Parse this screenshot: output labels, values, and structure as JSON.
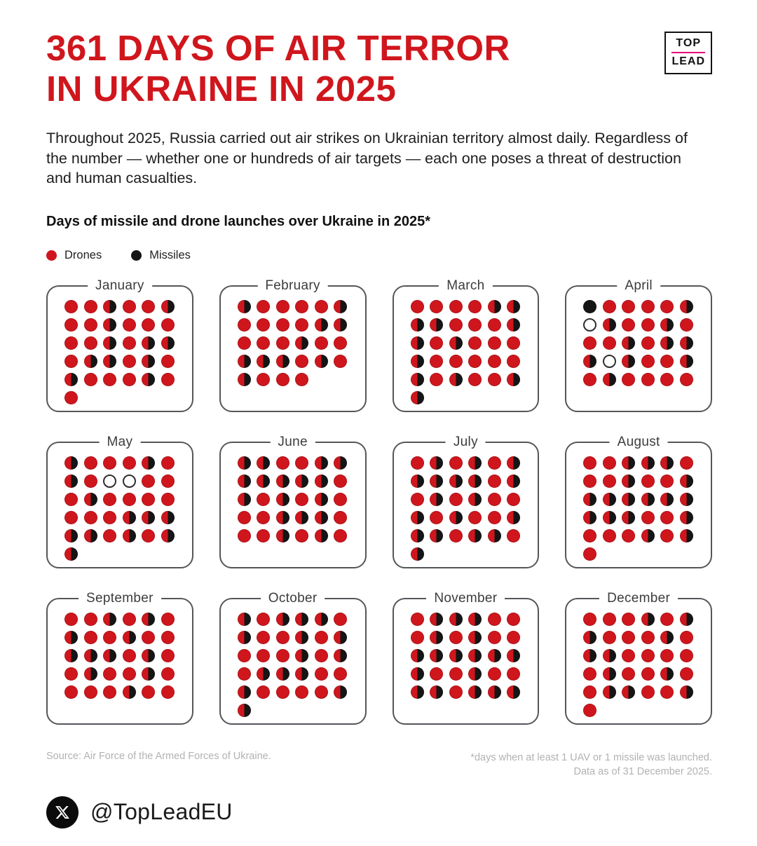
{
  "header": {
    "title_line1": "361 DAYS OF AIR TERROR",
    "title_line2": "IN UKRAINE IN 2025",
    "logo_top": "TOP",
    "logo_bottom": "LEAD"
  },
  "intro_text": "Throughout 2025, Russia carried out air strikes on Ukrainian territory almost daily. Regardless of the number — whether one or hundreds of air targets — each one poses a threat of destruction and human casualties.",
  "section_title": "Days of missile and drone launches over Ukraine in 2025*",
  "legend": {
    "drones_label": "Drones",
    "missiles_label": "Missiles"
  },
  "colors": {
    "accent_red": "#d0161d",
    "missile_black": "#151515",
    "logo_underline_pink": "#e5097f",
    "panel_border": "#55565a",
    "muted_text": "#b2b2b2"
  },
  "chart_data": {
    "type": "calendar_dot_matrix",
    "title": "Days of missile and drone launches over Ukraine in 2025*",
    "year": "2025",
    "days_with_launches_total": 361,
    "legend": [
      {
        "label": "Drones",
        "symbol": "red-dot"
      },
      {
        "label": "Missiles",
        "symbol": "black-dot"
      }
    ],
    "day_codes": {
      "D": "drones launched (full red dot)",
      "M": "missiles launched (full black dot)",
      "B": "both drones and missiles launched (half red / half black dot)",
      "N": "no launches (empty white dot)"
    },
    "grid_columns_per_month": 6,
    "months": [
      {
        "name": "January",
        "days": "DDBDDBDDBDDDDDBDBBDBBDBDBDDDBDD"
      },
      {
        "name": "February",
        "days": "BDDDDBDDDDBBDDDBDDBBBDBDBDDD"
      },
      {
        "name": "March",
        "days": "DDDDBBBBDDDBBDBDDDBDDDDDBDBDDBB"
      },
      {
        "name": "April",
        "days": "MDDDDBNBDDBDDDBDBBBNBDDBDBDDDD"
      },
      {
        "name": "May",
        "days": "BDDDBDBDNNDDDBDDDDDDDBBBBBDBDBB"
      },
      {
        "name": "June",
        "days": "BBDDBBBBBBBDBDBDBDDDBBBDDDBDBD"
      },
      {
        "name": "July",
        "days": "DBDBDBBBBBDBDBDBDDBDBDDBBBDBBDB"
      },
      {
        "name": "August",
        "days": "DDBBBDDDBDDBBBBBBBBBBDDBDDDBDBD"
      },
      {
        "name": "September",
        "days": "DDBDBDBDDBDDBBBDBDDBDDBDDDDBDD"
      },
      {
        "name": "October",
        "days": "BDBBBDBDDBDBDDDBDBDBBBDDBDDDDBB"
      },
      {
        "name": "November",
        "days": "DBBBDDDBDBDDBBBBBBBDDBDDBBDBBB"
      },
      {
        "name": "December",
        "days": "DDDBDBBDDDBDBBDDDDDBDDBDDBBDDBD"
      }
    ]
  },
  "footer": {
    "source": "Source: Air Force of the Armed Forces of Ukraine.",
    "note_line1": "*days when at least 1 UAV or 1 missile was launched.",
    "note_line2": "Data as of 31 December 2025.",
    "social_handle": "@TopLeadEU",
    "x_icon": "x-logo"
  }
}
